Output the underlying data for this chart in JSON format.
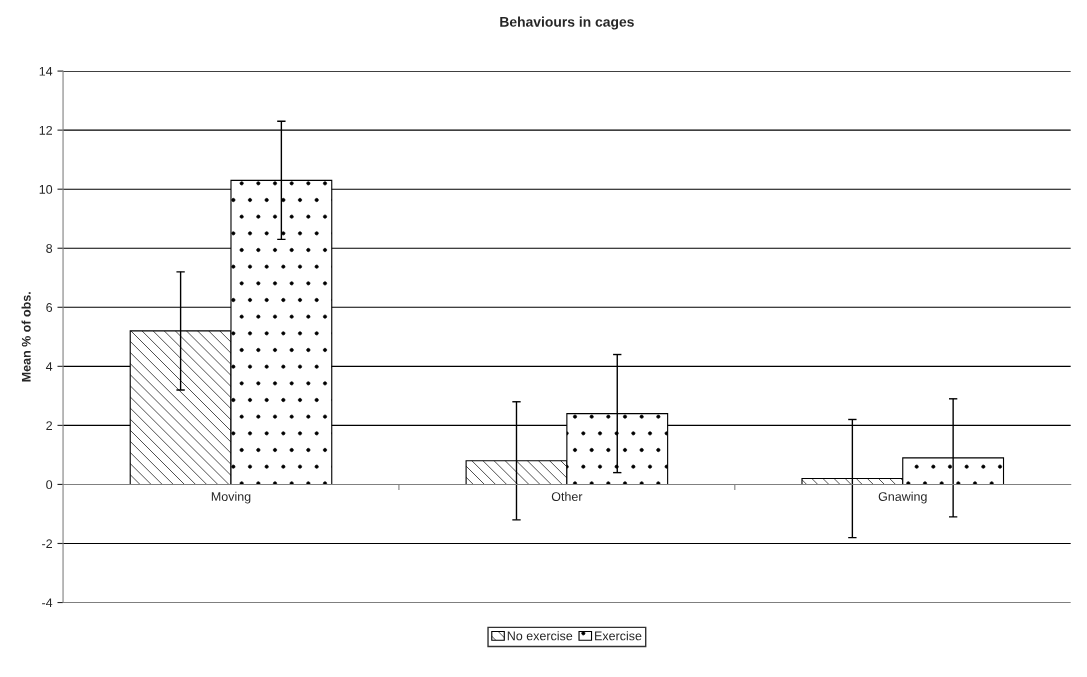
{
  "chart_data": {
    "type": "bar",
    "title": "Behaviours in cages",
    "ylabel": "Mean % of obs.",
    "categories": [
      "Moving",
      "Other",
      "Gnawing"
    ],
    "series": [
      {
        "name": "No exercise",
        "color": "#ffffff",
        "values": [
          5.2,
          0.8,
          0.2
        ],
        "errors": [
          2,
          2,
          2
        ]
      },
      {
        "name": "Exercise",
        "color": "#ffffff",
        "values": [
          10.3,
          2.4,
          0.9
        ],
        "errors": [
          2,
          2,
          2
        ]
      }
    ],
    "ylim": [
      -4,
      14
    ],
    "yticks": [
      -4,
      -2,
      0,
      2,
      4,
      6,
      8,
      10,
      12,
      14
    ],
    "grid": "y",
    "legend": "bottom"
  }
}
